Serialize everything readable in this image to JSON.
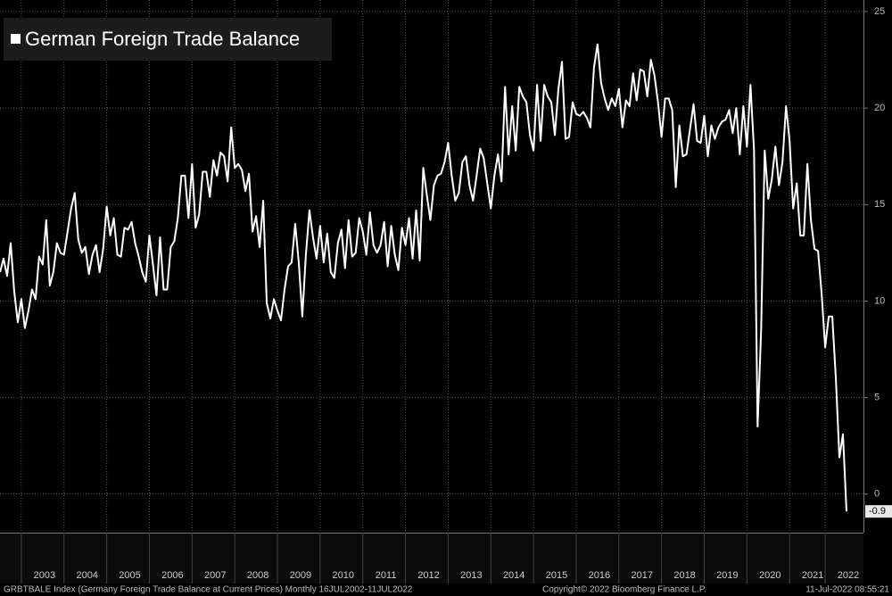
{
  "chart_data": {
    "type": "line",
    "categories": [
      null,
      null,
      null,
      null,
      null,
      null,
      null,
      null,
      null,
      null,
      null,
      null,
      "2003",
      null,
      null,
      null,
      null,
      null,
      null,
      null,
      null,
      null,
      null,
      null,
      "2004",
      null,
      null,
      null,
      null,
      null,
      null,
      null,
      null,
      null,
      null,
      null,
      "2005",
      null,
      null,
      null,
      null,
      null,
      null,
      null,
      null,
      null,
      null,
      null,
      "2006",
      null,
      null,
      null,
      null,
      null,
      null,
      null,
      null,
      null,
      null,
      null,
      "2007",
      null,
      null,
      null,
      null,
      null,
      null,
      null,
      null,
      null,
      null,
      null,
      "2008",
      null,
      null,
      null,
      null,
      null,
      null,
      null,
      null,
      null,
      null,
      null,
      "2009",
      null,
      null,
      null,
      null,
      null,
      null,
      null,
      null,
      null,
      null,
      null,
      "2010",
      null,
      null,
      null,
      null,
      null,
      null,
      null,
      null,
      null,
      null,
      null,
      "2011",
      null,
      null,
      null,
      null,
      null,
      null,
      null,
      null,
      null,
      null,
      null,
      "2012",
      null,
      null,
      null,
      null,
      null,
      null,
      null,
      null,
      null,
      null,
      null,
      "2013",
      null,
      null,
      null,
      null,
      null,
      null,
      null,
      null,
      null,
      null,
      null,
      "2014",
      null,
      null,
      null,
      null,
      null,
      null,
      null,
      null,
      null,
      null,
      null,
      "2015",
      null,
      null,
      null,
      null,
      null,
      null,
      null,
      null,
      null,
      null,
      null,
      "2016",
      null,
      null,
      null,
      null,
      null,
      null,
      null,
      null,
      null,
      null,
      null,
      "2017",
      null,
      null,
      null,
      null,
      null,
      null,
      null,
      null,
      null,
      null,
      null,
      "2018",
      null,
      null,
      null,
      null,
      null,
      null,
      null,
      null,
      null,
      null,
      null,
      "2019",
      null,
      null,
      null,
      null,
      null,
      null,
      null,
      null,
      null,
      null,
      null,
      "2020",
      null,
      null,
      null,
      null,
      null,
      null,
      null,
      null,
      null,
      null,
      null,
      "2021",
      null,
      null,
      null,
      null,
      null,
      null,
      null,
      null,
      null,
      "2022"
    ],
    "series": [
      {
        "name": "German Foreign Trade Balance",
        "color": "#ffffff",
        "values": [
          11.5,
          12.2,
          11.3,
          13.0,
          10.5,
          8.9,
          10.1,
          8.6,
          9.5,
          10.6,
          10.1,
          12.3,
          11.9,
          14.2,
          10.8,
          11.5,
          13.0,
          12.5,
          12.4,
          13.6,
          14.8,
          15.6,
          13.2,
          12.5,
          12.8,
          11.4,
          12.4,
          12.9,
          11.5,
          12.7,
          14.9,
          13.4,
          14.3,
          12.4,
          12.3,
          13.8,
          13.7,
          14.1,
          13.0,
          12.3,
          11.5,
          11.0,
          13.4,
          11.9,
          10.3,
          13.3,
          10.6,
          10.6,
          12.8,
          13.1,
          14.3,
          16.5,
          16.5,
          14.3,
          17.1,
          13.8,
          14.5,
          16.7,
          16.7,
          15.4,
          17.3,
          16.5,
          17.7,
          17.5,
          16.2,
          19.0,
          16.9,
          17.1,
          16.8,
          15.7,
          16.6,
          13.6,
          14.4,
          12.8,
          15.2,
          9.9,
          9.1,
          10.1,
          9.5,
          9.0,
          10.6,
          11.8,
          12.0,
          14.0,
          12.0,
          9.2,
          12.4,
          14.7,
          13.3,
          12.2,
          13.9,
          12.0,
          13.5,
          11.5,
          11.2,
          13.0,
          13.7,
          11.7,
          14.2,
          12.3,
          12.5,
          14.3,
          13.6,
          12.4,
          14.6,
          12.9,
          12.5,
          12.9,
          14.1,
          11.8,
          13.9,
          12.4,
          11.6,
          13.8,
          12.9,
          14.3,
          12.2,
          14.7,
          12.1,
          16.9,
          15.5,
          14.2,
          16.0,
          16.5,
          16.6,
          17.2,
          18.2,
          16.5,
          15.2,
          15.6,
          17.2,
          17.5,
          16.0,
          15.2,
          16.5,
          17.9,
          17.4,
          16.1,
          14.8,
          16.5,
          17.6,
          16.2,
          21.1,
          17.6,
          20.1,
          17.8,
          21.1,
          20.6,
          20.3,
          18.6,
          17.8,
          21.2,
          18.3,
          21.2,
          20.6,
          20.3,
          18.6,
          21.0,
          22.4,
          18.4,
          18.5,
          20.3,
          19.7,
          19.6,
          19.8,
          19.5,
          19.0,
          22.1,
          23.3,
          21.3,
          20.5,
          19.9,
          20.5,
          20.1,
          21.0,
          19.0,
          20.4,
          20.1,
          21.8,
          20.4,
          22.0,
          21.9,
          20.6,
          22.5,
          21.7,
          20.3,
          18.5,
          20.5,
          20.5,
          19.9,
          15.9,
          19.1,
          17.5,
          17.6,
          18.9,
          20.2,
          18.3,
          18.2,
          19.6,
          17.5,
          19.1,
          18.4,
          19.0,
          19.3,
          19.4,
          19.9,
          18.7,
          20.0,
          17.6,
          20.1,
          18.0,
          21.2,
          17.8,
          3.5,
          8.5,
          17.8,
          15.3,
          16.3,
          18.0,
          16.0,
          17.2,
          20.1,
          18.3,
          14.8,
          16.1,
          13.4,
          13.4,
          17.1,
          14.2,
          12.7,
          12.6,
          10.4,
          7.6,
          9.2,
          9.2,
          6.0,
          1.9,
          3.1,
          -0.9
        ]
      }
    ],
    "ylim": [
      -2,
      25.6
    ],
    "yticks": [
      0,
      5,
      10,
      15,
      20,
      25
    ],
    "grid": true,
    "legend": "top-left",
    "footer": {
      "source": "GRBTBALE Index (Germany Foreign Trade Balance at Current Prices)  Monthly 16JUL2002-11JUL2022",
      "copyright": "Copyright© 2022 Bloomberg Finance L.P.",
      "timestamp": "11-Jul-2022 08:55:21"
    }
  }
}
